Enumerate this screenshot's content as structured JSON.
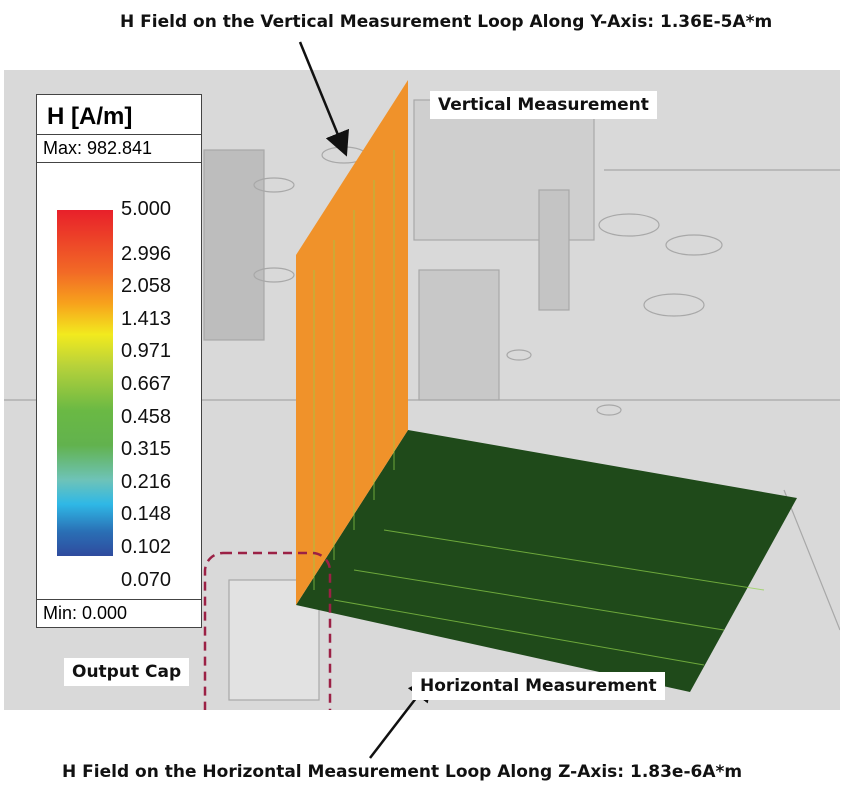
{
  "annotations": {
    "top_title": "H Field on the Vertical Measurement Loop Along Y-Axis: 1.36E-5A*m",
    "bottom_title": "H Field on the Horizontal Measurement Loop Along Z-Axis: 1.83e-6A*m",
    "vertical_label": "Vertical Measurement",
    "horizontal_label": "Horizontal Measurement",
    "output_cap_label": "Output Cap"
  },
  "legend": {
    "title": "H [A/m]",
    "max": "Max: 982.841",
    "min": "Min: 0.000",
    "ticks": [
      "5.000",
      "2.996",
      "2.058",
      "1.413",
      "0.971",
      "0.667",
      "0.458",
      "0.315",
      "0.216",
      "0.148",
      "0.102",
      "0.070"
    ]
  },
  "colors": {
    "vertical_plane": "#f0922a",
    "horizontal_plane": "#1f4a1a",
    "vector_arrows": "#8fd14a",
    "cap_outline": "#9b2145"
  }
}
